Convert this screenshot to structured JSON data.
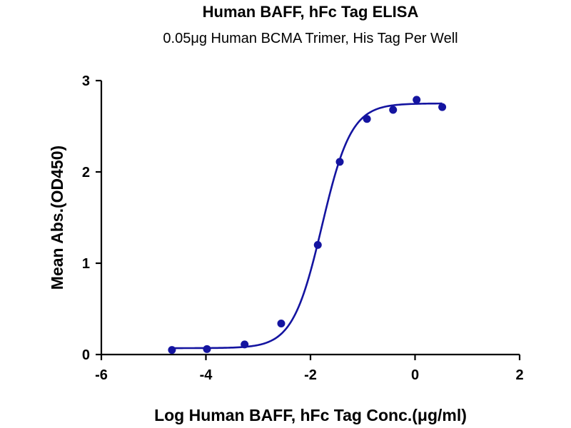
{
  "chart_data": {
    "type": "scatter",
    "title": "Human BAFF, hFc Tag ELISA",
    "subtitle": "0.05μg Human BCMA Trimer, His Tag Per Well",
    "xlabel": "Log Human BAFF, hFc Tag Conc.(μg/ml)",
    "ylabel": "Mean Abs.(OD450)",
    "xlim": [
      -6,
      2
    ],
    "ylim": [
      0,
      3
    ],
    "xticks": [
      "-6",
      "-4",
      "-2",
      "0",
      "2"
    ],
    "yticks": [
      "0",
      "1",
      "2",
      "3"
    ],
    "grid": false,
    "series": [
      {
        "color": "#1414a0",
        "fit": "sigmoidal 4PL",
        "x": [
          -4.65,
          -3.98,
          -3.26,
          -2.56,
          -1.86,
          -1.44,
          -0.92,
          -0.42,
          0.03,
          0.52
        ],
        "y": [
          0.05,
          0.06,
          0.11,
          0.34,
          1.2,
          2.11,
          2.58,
          2.68,
          2.79,
          2.71
        ]
      }
    ]
  }
}
